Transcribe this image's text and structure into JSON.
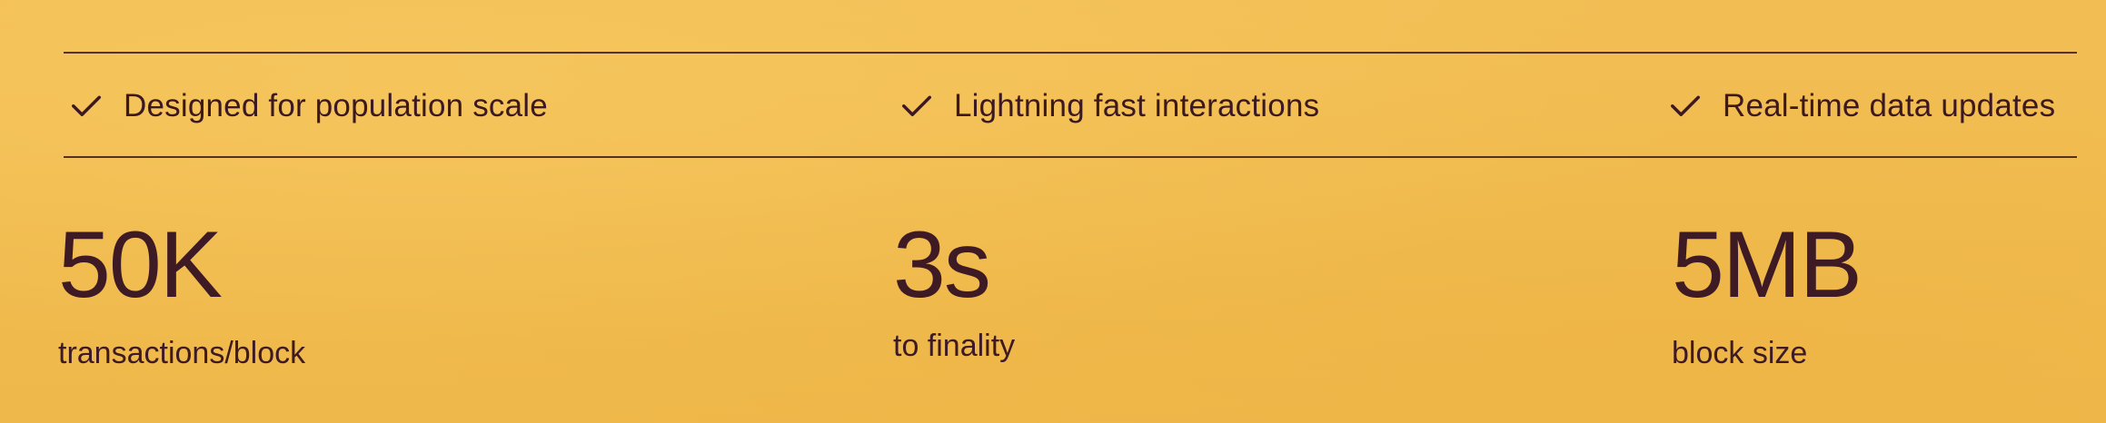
{
  "features": [
    {
      "icon": "check-icon",
      "label": "Designed for population scale"
    },
    {
      "icon": "check-icon",
      "label": "Lightning fast interactions"
    },
    {
      "icon": "check-icon",
      "label": "Real-time data updates"
    }
  ],
  "stats": [
    {
      "value": "50K",
      "label": "transactions/block"
    },
    {
      "value": "3s",
      "label": "to finality"
    },
    {
      "value": "5MB",
      "label": "block size"
    }
  ],
  "colors": {
    "background": "#f0b94a",
    "text": "#3e1a24",
    "rule": "#4a2a23"
  }
}
